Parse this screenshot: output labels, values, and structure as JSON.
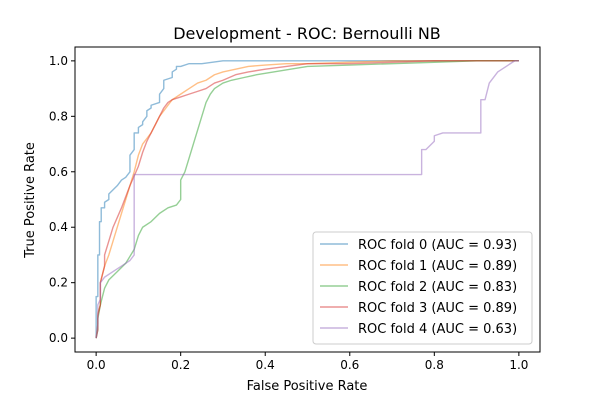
{
  "chart_data": {
    "type": "line",
    "title": "Development - ROC: Bernoulli NB",
    "xlabel": "False Positive Rate",
    "ylabel": "True Positive Rate",
    "xlim": [
      -0.05,
      1.05
    ],
    "ylim": [
      -0.05,
      1.05
    ],
    "xticks": [
      "0.0",
      "0.2",
      "0.4",
      "0.6",
      "0.8",
      "1.0"
    ],
    "yticks": [
      "0.0",
      "0.2",
      "0.4",
      "0.6",
      "0.8",
      "1.0"
    ],
    "grid": false,
    "legend_position": "lower-right",
    "series": [
      {
        "name": "ROC fold 0 (AUC = 0.93)",
        "color": "#1f77b4",
        "x": [
          0.0,
          0.0,
          0.004,
          0.004,
          0.008,
          0.008,
          0.012,
          0.012,
          0.02,
          0.02,
          0.03,
          0.03,
          0.05,
          0.06,
          0.07,
          0.08,
          0.08,
          0.09,
          0.09,
          0.1,
          0.1,
          0.11,
          0.11,
          0.12,
          0.12,
          0.13,
          0.13,
          0.15,
          0.15,
          0.16,
          0.16,
          0.18,
          0.18,
          0.19,
          0.19,
          0.2,
          0.22,
          0.25,
          0.3,
          0.35,
          0.4,
          0.5,
          0.6,
          0.7,
          0.8,
          0.9,
          1.0
        ],
        "y": [
          0.0,
          0.15,
          0.15,
          0.3,
          0.3,
          0.42,
          0.42,
          0.47,
          0.47,
          0.49,
          0.5,
          0.52,
          0.55,
          0.57,
          0.58,
          0.6,
          0.66,
          0.68,
          0.74,
          0.74,
          0.76,
          0.77,
          0.78,
          0.8,
          0.82,
          0.83,
          0.84,
          0.85,
          0.88,
          0.9,
          0.93,
          0.94,
          0.96,
          0.97,
          0.98,
          0.98,
          0.99,
          0.99,
          1.0,
          1.0,
          1.0,
          1.0,
          1.0,
          1.0,
          1.0,
          1.0,
          1.0
        ]
      },
      {
        "name": "ROC fold 1 (AUC = 0.89)",
        "color": "#ff7f0e",
        "x": [
          0.0,
          0.004,
          0.004,
          0.01,
          0.01,
          0.02,
          0.03,
          0.04,
          0.05,
          0.07,
          0.09,
          0.1,
          0.11,
          0.12,
          0.13,
          0.14,
          0.15,
          0.16,
          0.17,
          0.18,
          0.2,
          0.22,
          0.24,
          0.26,
          0.28,
          0.3,
          0.33,
          0.36,
          0.4,
          0.45,
          0.5,
          0.6,
          0.7,
          0.8,
          0.9,
          1.0
        ],
        "y": [
          0.0,
          0.05,
          0.09,
          0.12,
          0.2,
          0.26,
          0.3,
          0.35,
          0.4,
          0.5,
          0.6,
          0.66,
          0.7,
          0.72,
          0.74,
          0.77,
          0.8,
          0.82,
          0.84,
          0.86,
          0.88,
          0.9,
          0.92,
          0.93,
          0.95,
          0.96,
          0.97,
          0.98,
          0.985,
          0.99,
          0.99,
          0.995,
          1.0,
          1.0,
          1.0,
          1.0
        ]
      },
      {
        "name": "ROC fold 2 (AUC = 0.83)",
        "color": "#2ca02c",
        "x": [
          0.0,
          0.004,
          0.004,
          0.01,
          0.02,
          0.03,
          0.05,
          0.07,
          0.09,
          0.1,
          0.11,
          0.13,
          0.15,
          0.17,
          0.19,
          0.2,
          0.2,
          0.21,
          0.22,
          0.23,
          0.24,
          0.25,
          0.26,
          0.27,
          0.28,
          0.29,
          0.3,
          0.32,
          0.35,
          0.38,
          0.42,
          0.46,
          0.5,
          0.6,
          0.7,
          0.8,
          0.9,
          1.0
        ],
        "y": [
          0.0,
          0.03,
          0.07,
          0.12,
          0.18,
          0.21,
          0.24,
          0.27,
          0.32,
          0.37,
          0.4,
          0.42,
          0.45,
          0.47,
          0.48,
          0.5,
          0.57,
          0.6,
          0.65,
          0.7,
          0.75,
          0.8,
          0.85,
          0.88,
          0.9,
          0.91,
          0.92,
          0.93,
          0.94,
          0.95,
          0.96,
          0.97,
          0.98,
          0.985,
          0.99,
          0.995,
          1.0,
          1.0
        ]
      },
      {
        "name": "ROC fold 3 (AUC = 0.89)",
        "color": "#d62728",
        "x": [
          0.0,
          0.004,
          0.004,
          0.01,
          0.01,
          0.02,
          0.02,
          0.03,
          0.04,
          0.06,
          0.08,
          0.1,
          0.11,
          0.12,
          0.13,
          0.14,
          0.15,
          0.16,
          0.17,
          0.18,
          0.2,
          0.22,
          0.24,
          0.26,
          0.28,
          0.3,
          0.33,
          0.36,
          0.4,
          0.45,
          0.5,
          0.6,
          0.7,
          0.8,
          0.9,
          1.0
        ],
        "y": [
          0.0,
          0.03,
          0.08,
          0.12,
          0.2,
          0.26,
          0.3,
          0.35,
          0.4,
          0.47,
          0.55,
          0.62,
          0.67,
          0.71,
          0.74,
          0.77,
          0.8,
          0.83,
          0.85,
          0.86,
          0.87,
          0.88,
          0.89,
          0.9,
          0.92,
          0.93,
          0.95,
          0.96,
          0.97,
          0.98,
          0.99,
          0.99,
          0.995,
          1.0,
          1.0,
          1.0
        ]
      },
      {
        "name": "ROC fold 4 (AUC = 0.63)",
        "color": "#9467bd",
        "x": [
          0.0,
          0.004,
          0.004,
          0.01,
          0.01,
          0.02,
          0.04,
          0.06,
          0.08,
          0.09,
          0.09,
          0.1,
          0.5,
          0.77,
          0.77,
          0.78,
          0.8,
          0.8,
          0.82,
          0.85,
          0.88,
          0.91,
          0.91,
          0.92,
          0.93,
          0.95,
          0.97,
          0.98,
          0.99,
          1.0
        ],
        "y": [
          0.0,
          0.05,
          0.12,
          0.14,
          0.2,
          0.22,
          0.24,
          0.26,
          0.28,
          0.3,
          0.59,
          0.59,
          0.59,
          0.59,
          0.68,
          0.68,
          0.71,
          0.73,
          0.74,
          0.74,
          0.74,
          0.74,
          0.86,
          0.86,
          0.92,
          0.96,
          0.98,
          0.99,
          1.0,
          1.0
        ]
      }
    ]
  }
}
